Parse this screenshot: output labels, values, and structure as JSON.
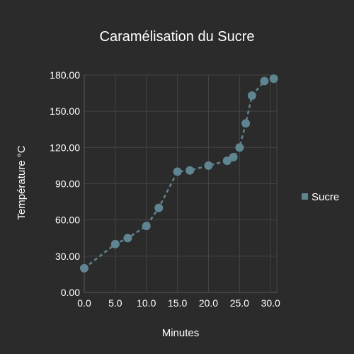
{
  "chart_data": {
    "type": "line",
    "title": "Caramélisation du Sucre",
    "xlabel": "Minutes",
    "ylabel": "Température °C",
    "xlim": [
      0,
      31
    ],
    "ylim": [
      0,
      180
    ],
    "x_ticks": [
      0,
      5,
      10,
      15,
      20,
      25,
      30
    ],
    "x_tick_labels": [
      "0.0",
      "5.0",
      "10.0",
      "15.0",
      "20.0",
      "25.0",
      "30.0"
    ],
    "y_ticks": [
      0,
      30,
      60,
      90,
      120,
      150,
      180
    ],
    "y_tick_labels": [
      "0.00",
      "30.00",
      "60.00",
      "90.00",
      "120.00",
      "150.00",
      "180.00"
    ],
    "grid": true,
    "legend_position": "right",
    "series": [
      {
        "name": "Sucre",
        "color": "#5f8590",
        "line_style": "dashed",
        "marker": "circle",
        "x": [
          0,
          5,
          7,
          10,
          12,
          15,
          17,
          20,
          23,
          24,
          25,
          26,
          27,
          29,
          30.5
        ],
        "y": [
          20,
          40,
          45,
          55,
          70,
          100,
          101,
          105,
          109,
          112,
          120,
          140,
          163,
          175,
          177
        ]
      }
    ]
  }
}
